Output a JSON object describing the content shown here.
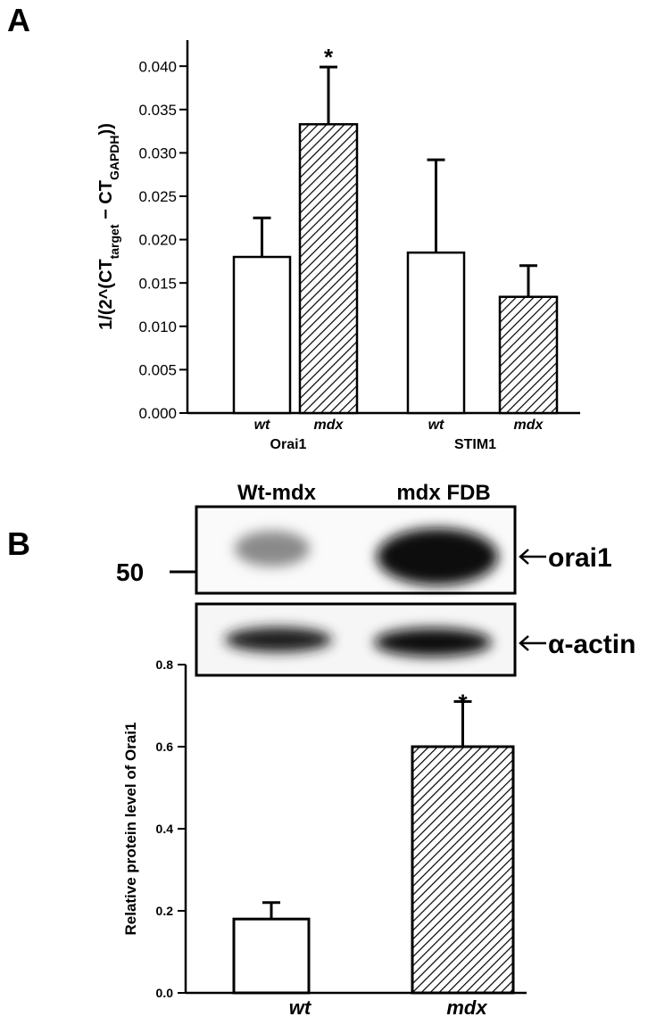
{
  "panel_labels": [
    "A",
    "B"
  ],
  "blot": {
    "lane_labels": [
      "Wt-mdx",
      "mdx FDB"
    ],
    "marker": "50",
    "band_labels": [
      "orai1",
      "α-actin"
    ]
  },
  "chart_data": [
    {
      "type": "bar",
      "ylabel_parts": [
        "1/(2^(CT",
        "target",
        " − CT",
        "GAPDH",
        "))"
      ],
      "categories": [
        "Orai1",
        "STIM1"
      ],
      "series": [
        {
          "name": "wt",
          "color": "#ffffff",
          "hatched": false,
          "values": [
            0.018,
            0.0185
          ],
          "errors": [
            0.0045,
            0.0107
          ]
        },
        {
          "name": "mdx",
          "color": "#ffffff",
          "hatched": true,
          "values": [
            0.0333,
            0.0134
          ],
          "errors": [
            0.0066,
            0.0036
          ]
        }
      ],
      "ylim": [
        0,
        0.043
      ],
      "yticks": [
        {
          "value": 0,
          "label": "0.000"
        },
        {
          "value": 0.005,
          "label": "0.005"
        },
        {
          "value": 0.01,
          "label": "0.010"
        },
        {
          "value": 0.015,
          "label": "0.015"
        },
        {
          "value": 0.02,
          "label": "0.020"
        },
        {
          "value": 0.025,
          "label": "0.025"
        },
        {
          "value": 0.03,
          "label": "0.030"
        },
        {
          "value": 0.035,
          "label": "0.035"
        },
        {
          "value": 0.04,
          "label": "0.040"
        }
      ],
      "annotations": [
        {
          "text": "*",
          "category": "Orai1",
          "series": "mdx"
        }
      ]
    },
    {
      "type": "bar",
      "ylabel": "Relative protein level of Orai1",
      "categories": [
        "wt",
        "mdx"
      ],
      "values": [
        0.18,
        0.6
      ],
      "errors": [
        0.04,
        0.11
      ],
      "color": "#ffffff",
      "hatched": [
        false,
        true
      ],
      "ylim": [
        0,
        0.8
      ],
      "yticks": [
        {
          "value": 0,
          "label": "0.0"
        },
        {
          "value": 0.2,
          "label": "0.2"
        },
        {
          "value": 0.4,
          "label": "0.4"
        },
        {
          "value": 0.6,
          "label": "0.6"
        },
        {
          "value": 0.8,
          "label": "0.8"
        }
      ],
      "annotations": [
        {
          "text": "*",
          "category": "mdx"
        }
      ]
    }
  ]
}
